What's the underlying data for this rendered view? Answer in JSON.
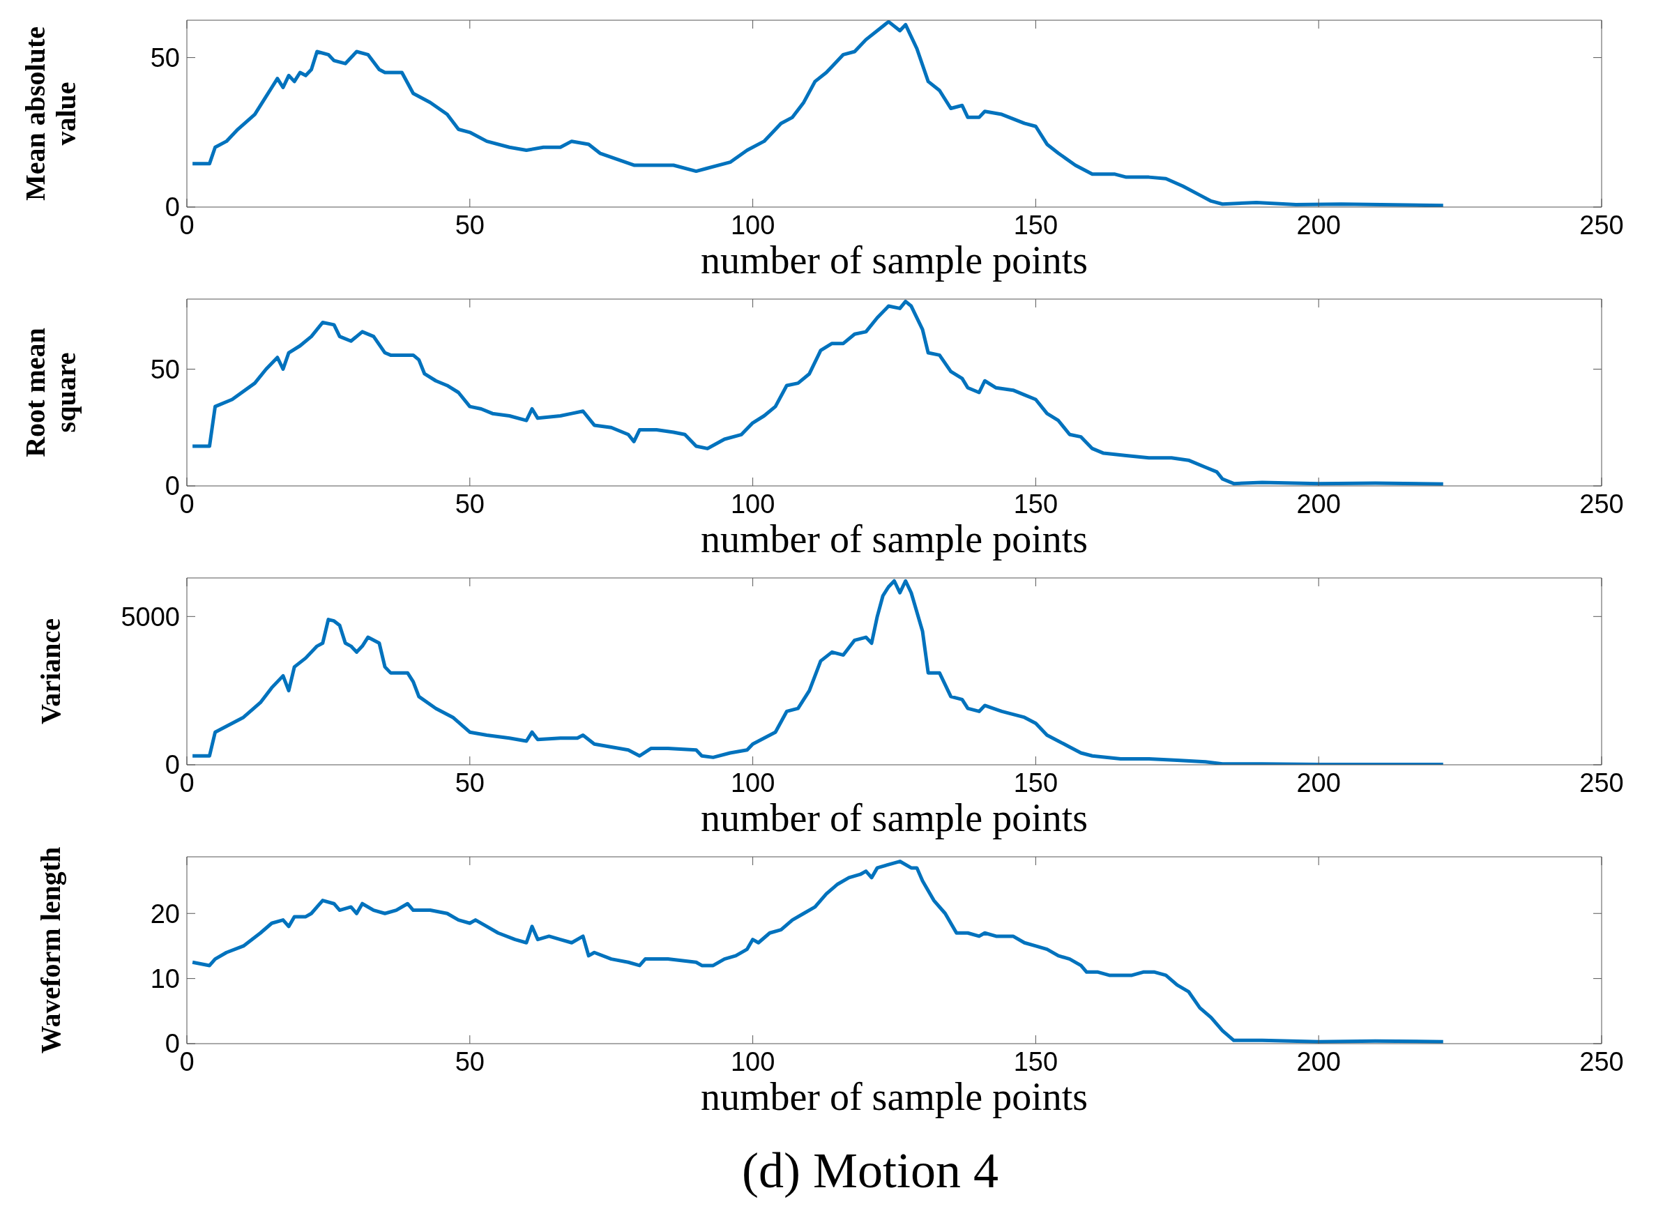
{
  "chart_data": [
    {
      "type": "line",
      "xlabel": "number of sample points",
      "ylabel": "Mean absolute value",
      "color": "#0072bd",
      "xlim": [
        0,
        250
      ],
      "xticks": [
        0,
        50,
        100,
        150,
        200,
        250
      ],
      "ylim": [
        0,
        62.5
      ],
      "yticks": [
        0,
        50
      ],
      "x": [
        1,
        4,
        5,
        7,
        9,
        12,
        14,
        15,
        16,
        17,
        18,
        19,
        20,
        21,
        22,
        23,
        25,
        26,
        28,
        30,
        32,
        34,
        35,
        38,
        40,
        43,
        46,
        48,
        50,
        53,
        57,
        60,
        63,
        66,
        68,
        71,
        73,
        76,
        79,
        83,
        86,
        90,
        92,
        96,
        99,
        102,
        105,
        107,
        109,
        111,
        113,
        114,
        116,
        118,
        120,
        122,
        124,
        126,
        127,
        129,
        131,
        133,
        135,
        137,
        138,
        140,
        141,
        144,
        148,
        150,
        152,
        154,
        157,
        160,
        164,
        166,
        170,
        173,
        176,
        179,
        181,
        183,
        189,
        196,
        204,
        211,
        222
      ],
      "values": [
        14.5,
        14.5,
        20,
        22,
        26,
        31,
        37,
        40,
        43,
        40,
        44,
        42,
        45,
        44,
        46,
        52,
        51,
        49,
        48,
        52,
        51,
        46,
        45,
        45,
        38,
        35,
        31,
        26,
        25,
        22,
        20,
        19,
        20,
        20,
        22,
        21,
        18,
        16,
        14,
        14,
        14,
        12,
        13,
        15,
        19,
        22,
        28,
        30,
        35,
        42,
        45,
        47,
        51,
        52,
        56,
        59,
        62,
        59,
        61,
        53,
        42,
        39,
        33,
        34,
        30,
        30,
        32,
        31,
        28,
        27,
        21,
        18,
        14,
        11,
        11,
        10,
        10,
        9.5,
        7,
        4,
        2,
        1,
        1.5,
        0.8,
        1,
        0.8,
        0.5
      ]
    },
    {
      "type": "line",
      "xlabel": "number of sample points",
      "ylabel": "Root mean square",
      "color": "#0072bd",
      "xlim": [
        0,
        250
      ],
      "xticks": [
        0,
        50,
        100,
        150,
        200,
        250
      ],
      "ylim": [
        0,
        80
      ],
      "yticks": [
        0,
        50
      ],
      "x": [
        1,
        4,
        5,
        8,
        12,
        14,
        16,
        17,
        18,
        20,
        22,
        24,
        26,
        27,
        29,
        31,
        33,
        35,
        36,
        40,
        41,
        42,
        44,
        46,
        48,
        50,
        52,
        54,
        57,
        60,
        61,
        62,
        66,
        68,
        70,
        72,
        75,
        78,
        79,
        80,
        83,
        86,
        88,
        90,
        92,
        95,
        98,
        100,
        102,
        104,
        106,
        108,
        110,
        112,
        114,
        116,
        118,
        120,
        122,
        124,
        126,
        127,
        128,
        130,
        131,
        133,
        135,
        137,
        138,
        140,
        141,
        143,
        146,
        148,
        150,
        152,
        154,
        156,
        158,
        160,
        162,
        166,
        170,
        174,
        177,
        180,
        182,
        183,
        185,
        190,
        200,
        210,
        222
      ],
      "values": [
        17,
        17,
        34,
        37,
        44,
        50,
        55,
        50,
        57,
        60,
        64,
        70,
        69,
        64,
        62,
        66,
        64,
        57,
        56,
        56,
        54,
        48,
        45,
        43,
        40,
        34,
        33,
        31,
        30,
        28,
        33,
        29,
        30,
        31,
        32,
        26,
        25,
        22,
        19,
        24,
        24,
        23,
        22,
        17,
        16,
        20,
        22,
        27,
        30,
        34,
        43,
        44,
        48,
        58,
        61,
        61,
        65,
        66,
        72,
        77,
        76,
        79,
        77,
        67,
        57,
        56,
        49,
        46,
        42,
        40,
        45,
        42,
        41,
        39,
        37,
        31,
        28,
        22,
        21,
        16,
        14,
        13,
        12,
        12,
        11,
        8,
        6,
        3,
        1,
        1.5,
        1,
        1.2,
        0.8
      ]
    },
    {
      "type": "line",
      "xlabel": "number of sample points",
      "ylabel": "Variance",
      "color": "#0072bd",
      "xlim": [
        0,
        250
      ],
      "xticks": [
        0,
        50,
        100,
        150,
        200,
        250
      ],
      "ylim": [
        0,
        6300
      ],
      "yticks": [
        0,
        5000
      ],
      "x": [
        1,
        4,
        5,
        7,
        10,
        13,
        15,
        17,
        18,
        19,
        21,
        23,
        24,
        25,
        26,
        27,
        28,
        29,
        30,
        31,
        32,
        33,
        34,
        35,
        36,
        39,
        40,
        41,
        44,
        47,
        50,
        53,
        57,
        60,
        61,
        62,
        66,
        69,
        70,
        72,
        75,
        78,
        80,
        82,
        85,
        90,
        91,
        93,
        96,
        99,
        100,
        102,
        104,
        106,
        108,
        110,
        112,
        114,
        116,
        118,
        120,
        121,
        122,
        123,
        124,
        125,
        126,
        127,
        128,
        130,
        131,
        133,
        135,
        137,
        138,
        140,
        141,
        144,
        148,
        150,
        152,
        154,
        156,
        158,
        160,
        165,
        170,
        175,
        180,
        183,
        190,
        200,
        222
      ],
      "values": [
        300,
        300,
        1100,
        1300,
        1600,
        2100,
        2600,
        3000,
        2500,
        3300,
        3600,
        4000,
        4100,
        4900,
        4850,
        4700,
        4100,
        4000,
        3800,
        4000,
        4300,
        4200,
        4100,
        3300,
        3100,
        3100,
        2800,
        2300,
        1900,
        1600,
        1100,
        1000,
        900,
        800,
        1100,
        850,
        900,
        900,
        1000,
        700,
        600,
        500,
        300,
        550,
        550,
        500,
        300,
        250,
        400,
        500,
        700,
        900,
        1100,
        1800,
        1900,
        2500,
        3500,
        3800,
        3700,
        4200,
        4300,
        4100,
        5000,
        5700,
        6000,
        6200,
        5800,
        6200,
        5800,
        4500,
        3100,
        3100,
        2300,
        2200,
        1900,
        1800,
        2000,
        1800,
        1600,
        1400,
        1000,
        800,
        600,
        400,
        300,
        200,
        200,
        150,
        100,
        30,
        30,
        10,
        10
      ]
    },
    {
      "type": "line",
      "xlabel": "number of sample points",
      "ylabel": "Waveform length",
      "color": "#0072bd",
      "xlim": [
        0,
        250
      ],
      "xticks": [
        0,
        50,
        100,
        150,
        200,
        250
      ],
      "ylim": [
        0,
        28.7
      ],
      "yticks": [
        0,
        10,
        20
      ],
      "annotations": [
        "(d) Motion 4"
      ],
      "x": [
        1,
        4,
        5,
        7,
        10,
        13,
        15,
        17,
        18,
        19,
        21,
        22,
        23,
        24,
        26,
        27,
        29,
        30,
        31,
        33,
        35,
        37,
        39,
        40,
        43,
        46,
        48,
        50,
        51,
        53,
        55,
        58,
        60,
        61,
        62,
        64,
        66,
        68,
        70,
        71,
        72,
        75,
        78,
        80,
        81,
        83,
        85,
        90,
        91,
        93,
        95,
        97,
        99,
        100,
        101,
        103,
        105,
        107,
        109,
        111,
        113,
        115,
        117,
        119,
        120,
        121,
        122,
        124,
        126,
        128,
        129,
        130,
        132,
        134,
        136,
        138,
        140,
        141,
        143,
        146,
        148,
        150,
        152,
        154,
        156,
        158,
        159,
        161,
        163,
        165,
        167,
        169,
        171,
        173,
        175,
        177,
        179,
        181,
        183,
        185,
        190,
        200,
        210,
        222
      ],
      "values": [
        12.5,
        12,
        13,
        14,
        15,
        17,
        18.5,
        19,
        18,
        19.5,
        19.5,
        20,
        21,
        22,
        21.5,
        20.5,
        21,
        20,
        21.5,
        20.5,
        20,
        20.5,
        21.5,
        20.5,
        20.5,
        20,
        19,
        18.5,
        19,
        18,
        17,
        16,
        15.5,
        18,
        16,
        16.5,
        16,
        15.5,
        16.5,
        13.5,
        14,
        13,
        12.5,
        12,
        13,
        13,
        13,
        12.5,
        12,
        12,
        13,
        13.5,
        14.5,
        16,
        15.5,
        17,
        17.5,
        19,
        20,
        21,
        23,
        24.5,
        25.5,
        26,
        26.5,
        25.5,
        27,
        27.5,
        28,
        27,
        27,
        25,
        22,
        20,
        17,
        17,
        16.5,
        17,
        16.5,
        16.5,
        15.5,
        15,
        14.5,
        13.5,
        13,
        12,
        11,
        11,
        10.5,
        10.5,
        10.5,
        11,
        11,
        10.5,
        9,
        8,
        5.5,
        4,
        2,
        0.5,
        0.5,
        0.3,
        0.4,
        0.3
      ]
    }
  ]
}
